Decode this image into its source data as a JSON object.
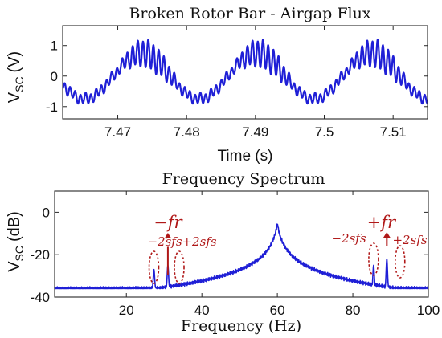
{
  "colors": {
    "trace": "#1f1fd6",
    "annot": "#b01818",
    "axis": "#262626"
  },
  "chart_data": [
    {
      "type": "line",
      "title": "Broken Rotor Bar - Airgap Flux",
      "xlabel": "Time (s)",
      "ylabel_main": "V",
      "ylabel_sub": "SC",
      "ylabel_unit": "(V)",
      "xlim": [
        7.462,
        7.515
      ],
      "ylim": [
        -1.4,
        1.65
      ],
      "xticks": [
        7.47,
        7.48,
        7.49,
        7.5,
        7.51
      ],
      "xtick_labels": [
        "7.47",
        "7.48",
        "7.49",
        "7.5",
        "7.51"
      ],
      "yticks": [
        -1,
        0,
        1
      ],
      "ytick_labels": [
        "-1",
        "0",
        "1"
      ],
      "grid": false,
      "series": [
        {
          "fundamental_hz": 60,
          "fundamental_amp": 0.75,
          "slot_harmonic_hz": 1320,
          "slot_harmonic_amp": 0.45,
          "slot_envelope_phase_deg": 90,
          "values_description": ""
        }
      ]
    },
    {
      "type": "line",
      "title": "Frequency Spectrum",
      "xlabel": "Frequency (Hz)",
      "ylabel_main": "V",
      "ylabel_sub": "SC",
      "ylabel_unit": "(dB)",
      "xlim": [
        1,
        100
      ],
      "ylim": [
        -40,
        10
      ],
      "xticks": [
        20,
        40,
        60,
        80,
        100
      ],
      "xtick_labels": [
        "20",
        "40",
        "60",
        "80",
        "100"
      ],
      "yticks": [
        -40,
        -20,
        0
      ],
      "ytick_labels": [
        "-40",
        "-20",
        "0"
      ],
      "grid": false,
      "series": [
        {
          "noise_floor_db": -36,
          "peaks": [
            {
              "x": 27.3,
              "y": -27
            },
            {
              "x": 31,
              "y": -25
            },
            {
              "x": 60,
              "y": -2
            },
            {
              "x": 85.5,
              "y": -25
            },
            {
              "x": 89,
              "y": -22
            }
          ]
        }
      ],
      "annotations": [
        {
          "id": "minus-fr",
          "text": "−fr",
          "x": 31
        },
        {
          "id": "plus-fr",
          "text": "+fr",
          "x": 89
        },
        {
          "id": "minus-2sfs-left",
          "text": "−2sfs",
          "x": 27.3
        },
        {
          "id": "plus-2sfs-left",
          "text": "+2sfs",
          "x": 34
        },
        {
          "id": "minus-2sfs-right",
          "text": "−2sfs",
          "x": 85.5
        },
        {
          "id": "plus-2sfs-right",
          "text": "+2sfs",
          "x": 92.5
        }
      ]
    }
  ]
}
